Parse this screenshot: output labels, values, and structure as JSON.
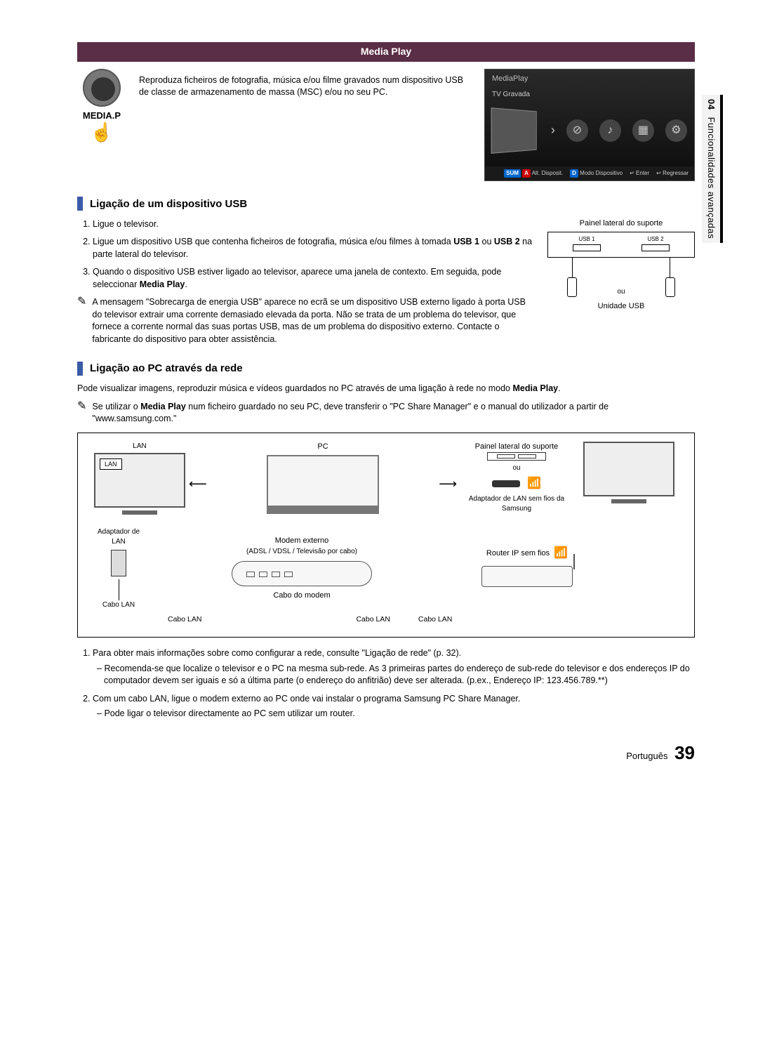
{
  "side_tab": {
    "num": "04",
    "label": "Funcionalidades avançadas"
  },
  "banner": "Media Play",
  "intro": {
    "text": "Reproduza ficheiros de fotografia, música e/ou filme gravados num dispositivo USB de classe de armazenamento de massa (MSC) e/ou no seu PC.",
    "button_label": "MEDIA.P"
  },
  "tv": {
    "header": "MediaPlay",
    "sub": "TV Gravada",
    "bottom": {
      "sum": "SUM",
      "a": "A",
      "a_label": "Alt. Disposit.",
      "d": "D",
      "d_label": "Modo Dispositivo",
      "enter_icon": "↵",
      "enter": "Enter",
      "back_icon": "↩",
      "back": "Regressar"
    }
  },
  "usb": {
    "heading": "Ligação de um dispositivo USB",
    "steps": [
      "Ligue o televisor.",
      "Ligue um dispositivo USB que contenha ficheiros de fotografia, música e/ou filmes à tomada <b>USB 1</b> ou <b>USB 2</b> na parte lateral do televisor.",
      "Quando o dispositivo USB estiver ligado ao televisor, aparece uma janela de contexto. Em seguida, pode seleccionar <b>Media Play</b>."
    ],
    "note": "A mensagem \"Sobrecarga de energia USB\" aparece no ecrã se um dispositivo USB externo ligado à porta USB do televisor extrair uma corrente demasiado elevada da porta. Não se trata de um problema do televisor, que fornece a corrente normal das suas portas USB, mas de um problema do dispositivo externo. Contacte o fabricante do dispositivo para obter assistência.",
    "diagram": {
      "panel_title": "Painel lateral do suporte",
      "port1": "USB 1",
      "port2": "USB 2",
      "ou": "ou",
      "unit": "Unidade USB"
    }
  },
  "net": {
    "heading": "Ligação ao PC através da rede",
    "intro": "Pode visualizar imagens, reproduzir música e vídeos guardados no PC através de uma ligação à rede no modo <b>Media Play</b>.",
    "note": "Se utilizar o <b>Media Play</b> num ficheiro guardado no seu PC, deve transferir o \"PC Share Manager\" e o manual do utilizador a partir de \"www.samsung.com.\"",
    "labels": {
      "pc": "PC",
      "panel": "Painel lateral do suporte",
      "lan": "LAN",
      "ou": "ou",
      "wlan_adapter": "Adaptador de LAN sem fios da Samsung",
      "lan_adapter": "Adaptador de LAN",
      "modem": "Modem externo",
      "modem_sub": "(ADSL / VDSL / Televisão por cabo)",
      "router": "Router IP sem fios",
      "cabo_lan": "Cabo LAN",
      "cabo_modem": "Cabo do modem"
    },
    "steps": [
      {
        "text": "Para obter mais informações sobre como configurar a rede, consulte \"Ligação de rede\" (p. 32).",
        "subs": [
          "Recomenda-se que localize o televisor e o PC na mesma sub-rede. As 3 primeiras partes do endereço de sub-rede do televisor e dos endereços IP do computador devem ser iguais e só a última parte (o endereço do anfitrião) deve ser alterada. (p.ex., Endereço IP: 123.456.789.**)"
        ]
      },
      {
        "text": "Com um cabo LAN, ligue o modem externo ao PC onde vai instalar o programa Samsung PC Share Manager.",
        "subs": [
          "Pode ligar o televisor directamente ao PC sem utilizar um router."
        ]
      }
    ]
  },
  "footer": {
    "lang": "Português",
    "page": "39"
  }
}
